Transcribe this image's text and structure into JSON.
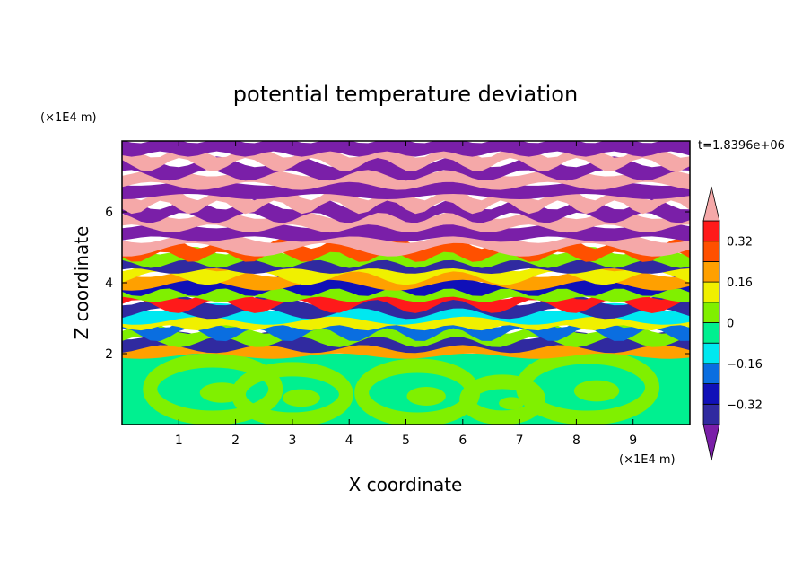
{
  "chart_data": {
    "type": "heatmap",
    "title": "potential temperature deviation",
    "xlabel": "X coordinate",
    "ylabel": "Z coordinate",
    "x_unit": "(×1E4 m)",
    "y_unit": "(×1E4 m)",
    "time_label": "t=1.8396e+06",
    "xlim": [
      0,
      10
    ],
    "ylim": [
      0,
      8
    ],
    "x_ticks": [
      1,
      2,
      3,
      4,
      5,
      6,
      7,
      8,
      9
    ],
    "y_ticks": [
      2,
      4,
      6
    ],
    "colorbar": {
      "levels": [
        -0.4,
        -0.32,
        -0.24,
        -0.16,
        -0.08,
        0,
        0.08,
        0.16,
        0.24,
        0.32,
        0.4
      ],
      "labeled_ticks": [
        0.32,
        0.16,
        0,
        -0.16,
        -0.32
      ],
      "tick_labels": [
        "0.32",
        "0.16",
        "0",
        "−0.16",
        "−0.32"
      ],
      "colors_low_to_high": [
        "#7a1fa8",
        "#302aa0",
        "#1010b8",
        "#0a6ee0",
        "#00e8f0",
        "#00f090",
        "#80f000",
        "#f0f000",
        "#ffa000",
        "#ff5000",
        "#ff1a1a",
        "#f5a8a8"
      ],
      "extend": "both"
    },
    "bands": [
      {
        "z": 7.85,
        "color": "#7a1fa8"
      },
      {
        "z": 7.55,
        "color": "#f5a8a8"
      },
      {
        "z": 7.25,
        "color": "#7a1fa8"
      },
      {
        "z": 6.95,
        "color": "#f5a8a8"
      },
      {
        "z": 6.65,
        "color": "#7a1fa8"
      },
      {
        "z": 6.35,
        "color": "#f5a8a8"
      },
      {
        "z": 6.05,
        "color": "#7a1fa8"
      },
      {
        "z": 5.75,
        "color": "#f5a8a8"
      },
      {
        "z": 5.45,
        "color": "#7a1fa8"
      },
      {
        "z": 5.15,
        "color": "#f5a8a8"
      },
      {
        "z": 4.95,
        "color": "#ff5000"
      },
      {
        "z": 4.75,
        "color": "#80f000"
      },
      {
        "z": 4.55,
        "color": "#302aa0"
      },
      {
        "z": 4.35,
        "color": "#f0f000"
      },
      {
        "z": 4.15,
        "color": "#ffa000"
      },
      {
        "z": 3.95,
        "color": "#1010b8"
      },
      {
        "z": 3.75,
        "color": "#80f000"
      },
      {
        "z": 3.55,
        "color": "#ff1a1a"
      },
      {
        "z": 3.35,
        "color": "#302aa0"
      },
      {
        "z": 3.15,
        "color": "#00e8f0"
      },
      {
        "z": 2.95,
        "color": "#f0f000"
      },
      {
        "z": 2.75,
        "color": "#0a6ee0"
      },
      {
        "z": 2.55,
        "color": "#80f000"
      },
      {
        "z": 2.35,
        "color": "#302aa0"
      },
      {
        "z": 2.15,
        "color": "#ffa000"
      }
    ],
    "lower_layer": {
      "z_top": 2.0,
      "base_color": "#00f090",
      "swirl_color": "#80f000"
    }
  }
}
